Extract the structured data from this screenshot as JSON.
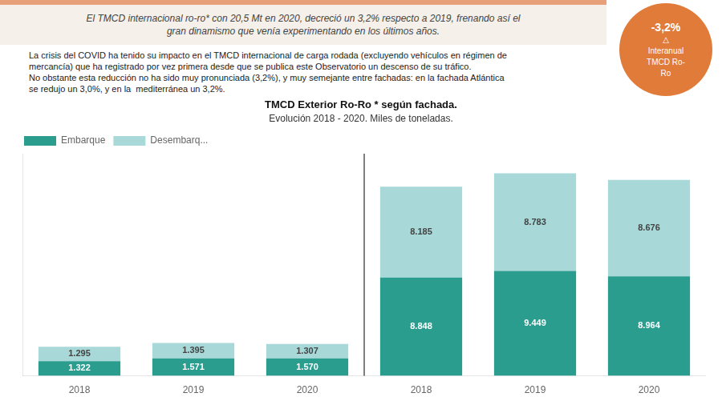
{
  "chart_data": {
    "type": "bar",
    "title": "TMCD Exterior Ro-Ro * según fachada.",
    "subtitle": "Evolución 2018 - 2020. Miles de toneladas.",
    "annotations": [
      "El TMCD internacional ro-ro* con 20,5 Mt en 2020, decreció un 3,2% respecto a 2019, frenando así el\ngran dinamismo que venía experimentando en los últimos años.",
      "La crisis del COVID ha tenido su impacto en el TMCD internacional de carga rodada (excluyendo vehículos en régimen de\nmercancía) que ha registrado por vez primera desde que se publica este Observatorio un descenso de su tráfico.\nNo obstante esta reducción no ha sido muy pronunciada (3,2%), y muy semejante entre fachadas: en la fachada Atlántica\nse redujo un 3,0%, y en la  mediterránea un 3,2%.",
      "-3,2%",
      "△",
      "Interanual",
      "TMCD Ro-",
      "Ro"
    ],
    "categories": [
      "2018",
      "2019",
      "2020",
      "2018",
      "2019",
      "2020"
    ],
    "series": [
      {
        "name": "Embarque",
        "color": "#2a9d8f",
        "values": [
          1322,
          1571,
          1570,
          8848,
          9449,
          8964
        ],
        "value_labels": [
          "1.322",
          "1.571",
          "1.570",
          "8.848",
          "9.449",
          "8.964"
        ]
      },
      {
        "name": "Desembarq...",
        "color": "#a8d8d8",
        "values": [
          1295,
          1395,
          1307,
          8185,
          8783,
          8676
        ],
        "value_labels": [
          "1.295",
          "1.395",
          "1.307",
          "8.185",
          "8.783",
          "8.676"
        ]
      }
    ],
    "stacked": true,
    "data_labels": true,
    "ylim": [
      0,
      20000
    ],
    "grid": false,
    "legend": "upper left",
    "tick_labels": "x"
  }
}
